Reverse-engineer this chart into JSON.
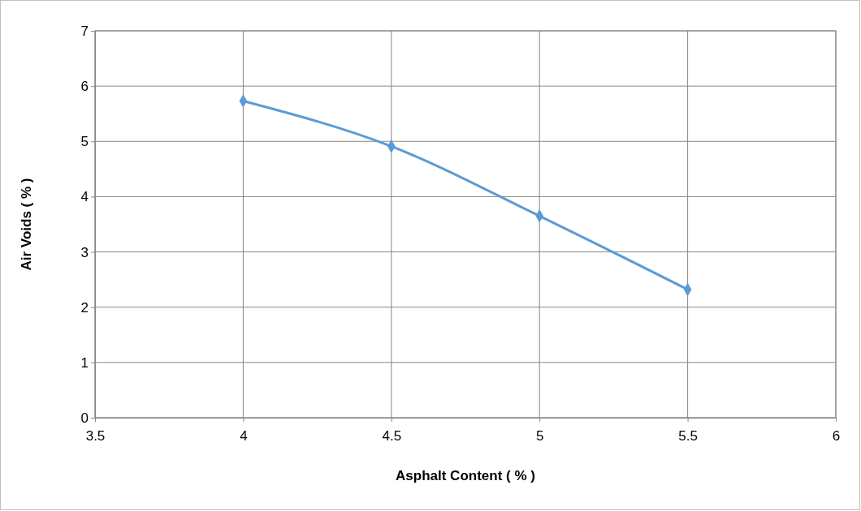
{
  "chart_data": {
    "type": "line",
    "xlabel": "Asphalt Content ( % )",
    "ylabel": "Air Voids ( % )",
    "x": [
      4,
      4.5,
      5,
      5.5
    ],
    "series": [
      {
        "color": "#5b9bd5",
        "values": [
          5.73,
          4.91,
          3.65,
          2.32
        ]
      }
    ],
    "xlim": [
      3.5,
      6
    ],
    "xticks": [
      3.5,
      4,
      4.5,
      5,
      5.5,
      6
    ],
    "ylim": [
      0,
      7
    ],
    "yticks": [
      0,
      1,
      2,
      3,
      4,
      5,
      6,
      7
    ],
    "grid": true,
    "marker": "diamond",
    "line_style": "solid"
  }
}
